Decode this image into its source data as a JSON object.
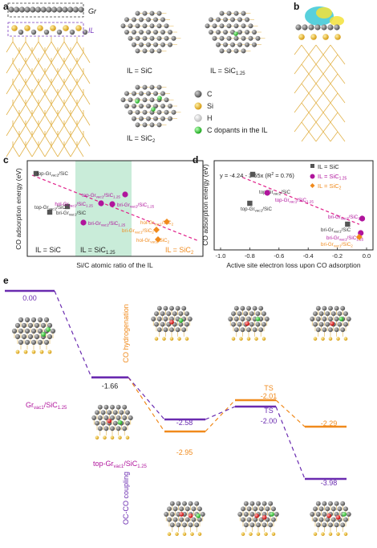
{
  "panel_labels": {
    "a": "a",
    "b": "b",
    "c": "c",
    "d": "d",
    "e": "e"
  },
  "panel_a": {
    "gr_label": "Gr",
    "il_label": "IL",
    "captions": {
      "sic": "IL = SiC",
      "sic125": "IL = SiC",
      "sic125_sub": "1.25",
      "sic2": "IL = SiC",
      "sic2_sub": "2"
    },
    "legend": [
      {
        "label": "C",
        "color": "#6e6e6e"
      },
      {
        "label": "Si",
        "color": "#e4a81c"
      },
      {
        "label": "H",
        "color": "#e8e8e8"
      },
      {
        "label": "C dopants in the IL",
        "color": "#2ecc40"
      }
    ]
  },
  "panel_c": {
    "ylabel": "CO adsorption energy (eV)",
    "xlabel": "Si/C atomic ratio of the IL",
    "region_labels": {
      "sic": "IL = SiC",
      "sic125": "IL = SiC",
      "sic125_sub": "1.25",
      "sic2": "IL = SiC",
      "sic2_sub": "2"
    }
  },
  "panel_d": {
    "ylabel": "CO adsorption energy (eV)",
    "xlabel": "Active site electron loss upon CO adsorption",
    "equation": "y = -4.24 - 3.65x  (R",
    "equation_tail": " = 0.76)",
    "legend": [
      {
        "label": "IL = SiC",
        "color": "#555555",
        "marker": "square"
      },
      {
        "label": "IL = SiC",
        "sub": "1.25",
        "color": "#b0149c",
        "marker": "circle"
      },
      {
        "label": "IL = SiC",
        "sub": "2",
        "color": "#f08a1c",
        "marker": "diamond"
      }
    ],
    "xticks": [
      "-1.0",
      "-0.8",
      "-0.6",
      "-0.4",
      "-0.2",
      "0.0"
    ]
  },
  "panel_e": {
    "labels": {
      "co_hydrogenation": "CO hydrogenation",
      "oc_co_coupling": "OC-CO coupling",
      "ts1": "TS",
      "ts2": "TS",
      "start_struct": "Gr",
      "start_struct_sub": "vac1",
      "start_struct_tail": "/SiC",
      "start_struct_tail_sub": "1.25",
      "top_struct": "top-Gr",
      "top_struct_sub": "vac1",
      "top_struct_tail": "/SiC",
      "top_struct_tail_sub": "1.25"
    },
    "energies": {
      "e0": "0.00",
      "e1": "-1.66",
      "h1": "-2.95",
      "h_ts": "-2.01",
      "h2": "-2.29",
      "c1": "-2.58",
      "c_ts": "-2.00",
      "c2": "-3.98"
    }
  },
  "chart_data": [
    {
      "type": "scatter",
      "title": "",
      "xlabel": "Si/C atomic ratio of the IL",
      "ylabel": "CO adsorption energy (eV)",
      "categories": [
        "IL = SiC",
        "IL = SiC1.25",
        "IL = SiC2"
      ],
      "series": [
        {
          "name": "IL = SiC",
          "color": "#555555",
          "marker": "square",
          "points": [
            {
              "x": 1.0,
              "y": -0.45,
              "label": "top-Gr_vac2/SiC"
            },
            {
              "x": 1.0,
              "y": -2.25,
              "label": "top-Gr_vac1/SiC"
            },
            {
              "x": 1.0,
              "y": -3.55,
              "label": "bri-Gr_vac1/SiC"
            }
          ]
        },
        {
          "name": "IL = SiC1.25",
          "color": "#b0149c",
          "marker": "circle",
          "points": [
            {
              "x": 1.25,
              "y": -1.6,
              "label": "top-Gr_vac1/SiC1.25"
            },
            {
              "x": 1.25,
              "y": -3.2,
              "label": "hol-Gr_vac1/SiC1.25"
            },
            {
              "x": 1.25,
              "y": -3.2,
              "label": "bri-Gr_vac2/SiC1.25"
            },
            {
              "x": 1.25,
              "y": -4.1,
              "label": "bri-Gr_vac1/SiC1.25"
            }
          ]
        },
        {
          "name": "IL = SiC2",
          "color": "#f08a1c",
          "marker": "diamond",
          "points": [
            {
              "x": 2.0,
              "y": -4.3,
              "label": "hol-Gr_vac1/SiC2"
            },
            {
              "x": 2.0,
              "y": -4.35,
              "label": "bri-Gr_vac1/SiC2"
            },
            {
              "x": 2.0,
              "y": -5.2,
              "label": "hol-Gr_vac2/SiC2"
            }
          ]
        }
      ]
    },
    {
      "type": "scatter",
      "title": "",
      "xlabel": "Active site electron loss upon CO adsorption",
      "ylabel": "CO adsorption energy (eV)",
      "xlim": [
        -1.0,
        0.0
      ],
      "fit": {
        "intercept": -4.24,
        "slope": -3.65,
        "r2": 0.76
      },
      "series": [
        {
          "name": "IL = SiC",
          "color": "#555555",
          "marker": "square",
          "points": [
            {
              "x": -0.78,
              "y": -0.45,
              "label": "top-Gr_vac2/SiC"
            },
            {
              "x": -0.8,
              "y": -2.25,
              "label": "top-Gr_vac1/SiC"
            },
            {
              "x": -0.13,
              "y": -3.55,
              "label": "bri-Gr_vac1/SiC"
            }
          ]
        },
        {
          "name": "IL = SiC1.25",
          "color": "#b0149c",
          "marker": "circle",
          "points": [
            {
              "x": -0.68,
              "y": -1.6,
              "label": "top-Gr_vac1/SiC1.25"
            },
            {
              "x": -0.03,
              "y": -3.2,
              "label": "bri-Gr_vac2/SiC1.25"
            },
            {
              "x": -0.04,
              "y": -4.1,
              "label": "bri-Gr_vac1/SiC1.25"
            }
          ]
        },
        {
          "name": "IL = SiC2",
          "color": "#f08a1c",
          "marker": "diamond",
          "points": [
            {
              "x": -0.05,
              "y": -4.35,
              "label": "bri-Gr_vac1/SiC2"
            }
          ]
        }
      ]
    },
    {
      "type": "line",
      "title": "",
      "ylabel": "",
      "series": [
        {
          "name": "CO hydrogenation",
          "color": "#f08a1c",
          "levels": [
            {
              "step": 0,
              "energy": 0.0
            },
            {
              "step": 1,
              "energy": -1.66
            },
            {
              "step": 2,
              "energy": -2.95
            },
            {
              "step": 3,
              "energy": -2.01,
              "label": "TS"
            },
            {
              "step": 4,
              "energy": -2.29
            }
          ]
        },
        {
          "name": "OC-CO coupling",
          "color": "#6a2bb0",
          "levels": [
            {
              "step": 0,
              "energy": 0.0
            },
            {
              "step": 1,
              "energy": -1.66
            },
            {
              "step": 2,
              "energy": -2.58
            },
            {
              "step": 3,
              "energy": -2.0,
              "label": "TS"
            },
            {
              "step": 4,
              "energy": -3.98
            }
          ]
        }
      ]
    }
  ]
}
